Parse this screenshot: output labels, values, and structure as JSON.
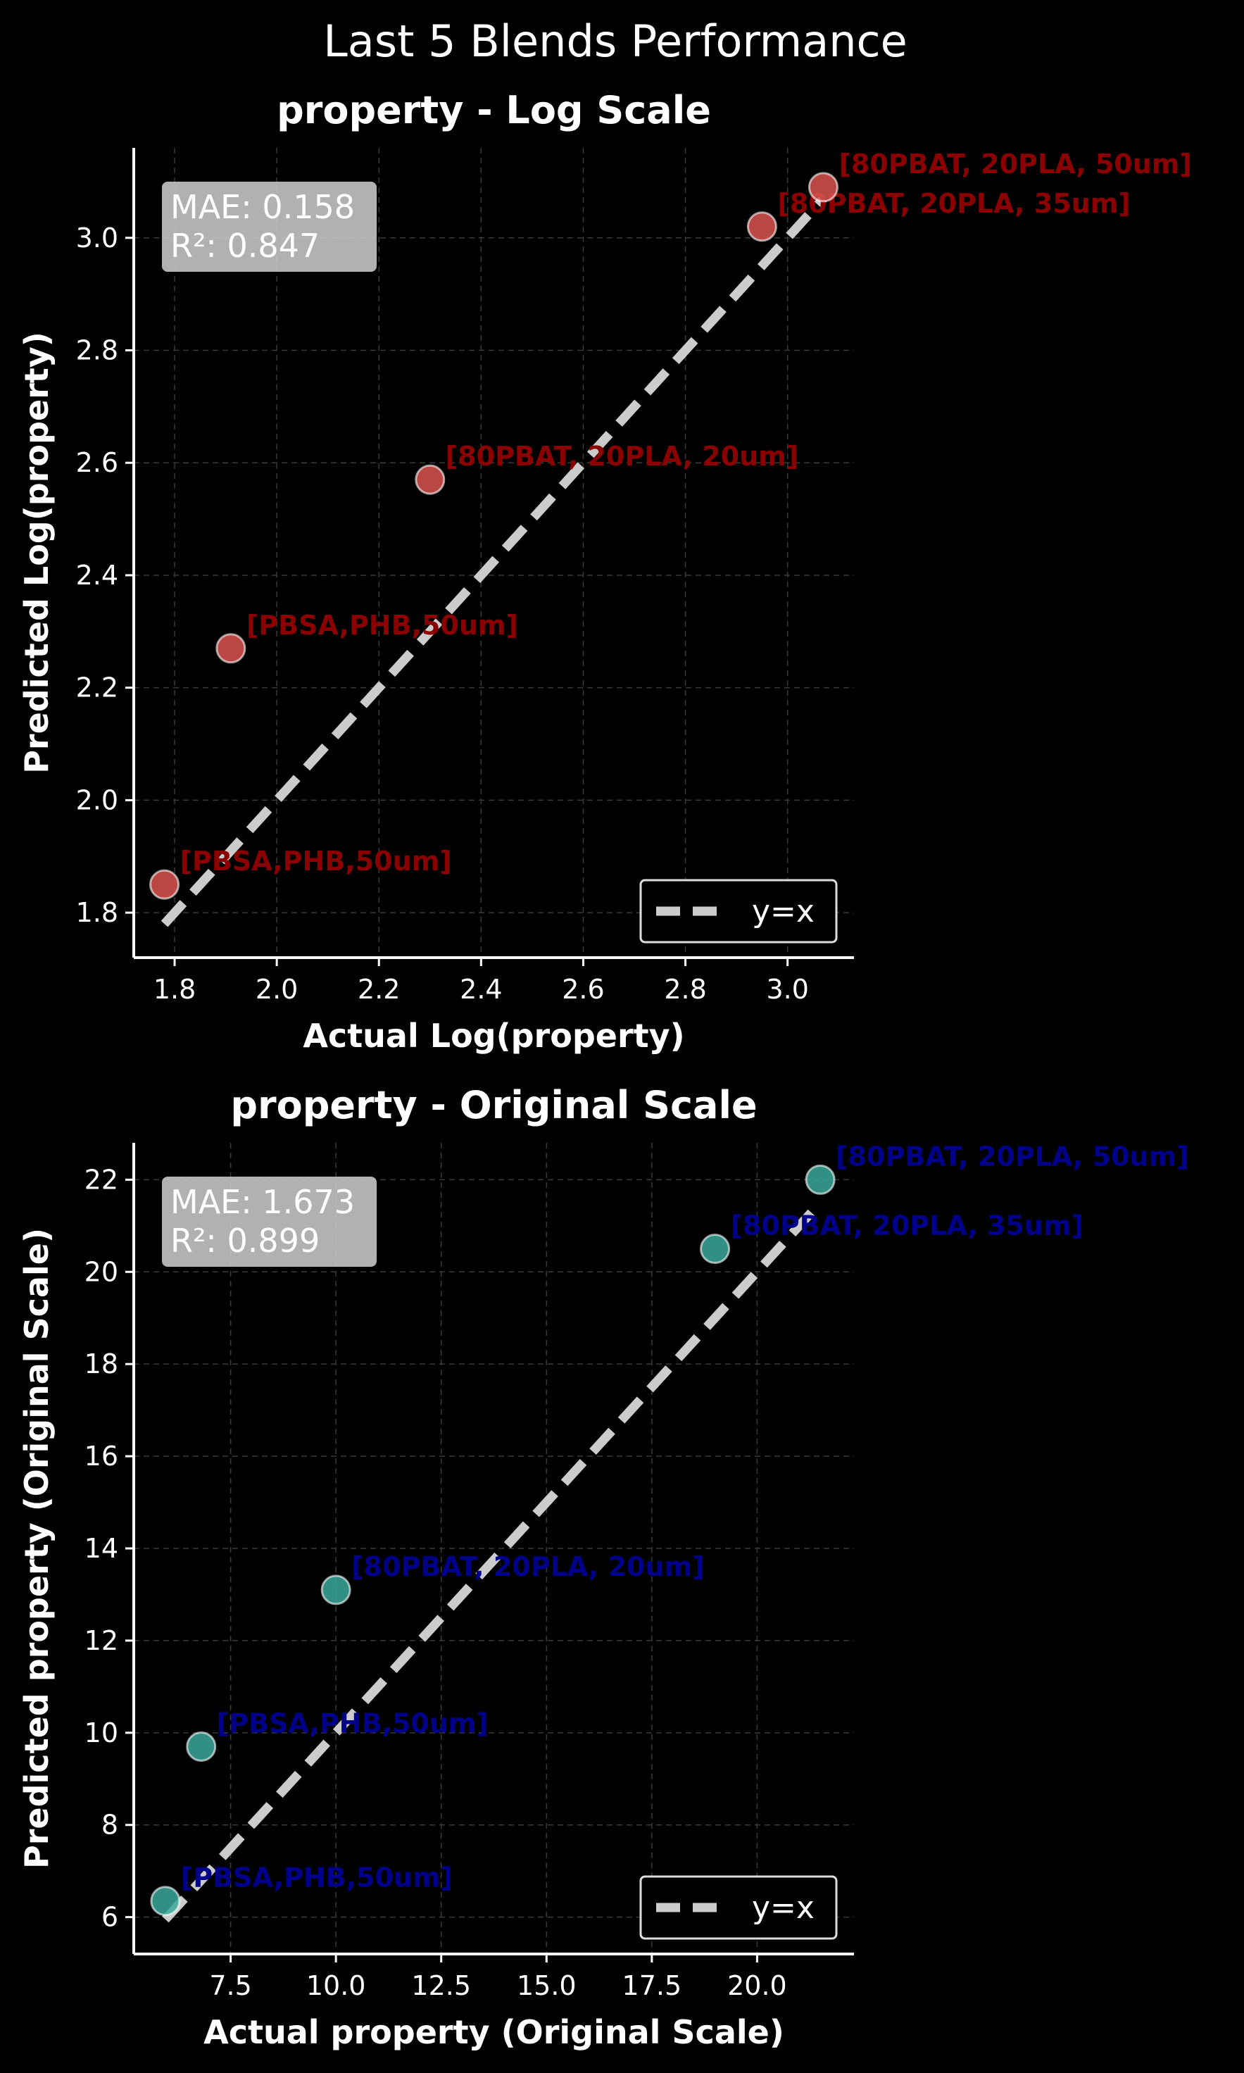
{
  "figure": {
    "title": "Last 5 Blends Performance"
  },
  "chart_data": [
    {
      "type": "scatter",
      "title": "property - Log Scale",
      "xlabel": "Actual Log(property)",
      "ylabel": "Predicted Log(property)",
      "xlim": [
        1.72,
        3.13
      ],
      "ylim": [
        1.72,
        3.16
      ],
      "xticks": [
        1.8,
        2.0,
        2.2,
        2.4,
        2.6,
        2.8,
        3.0
      ],
      "xtick_labels": [
        "1.8",
        "2.0",
        "2.2",
        "2.4",
        "2.6",
        "2.8",
        "3.0"
      ],
      "yticks": [
        1.8,
        2.0,
        2.2,
        2.4,
        2.6,
        2.8,
        3.0
      ],
      "ytick_labels": [
        "1.8",
        "2.0",
        "2.2",
        "2.4",
        "2.6",
        "2.8",
        "3.0"
      ],
      "grid": true,
      "legend_position": "lower-right",
      "legend": [
        "y=x"
      ],
      "reference_line": {
        "from": [
          1.78,
          1.78
        ],
        "to": [
          3.07,
          3.07
        ]
      },
      "stats": [
        "MAE: 0.158",
        "R²: 0.847"
      ],
      "marker_color": "#d9534f",
      "label_color": "#8b0000",
      "points": [
        {
          "x": 1.78,
          "y": 1.85,
          "label": "[PBSA,PHB,50um]"
        },
        {
          "x": 1.91,
          "y": 2.27,
          "label": "[PBSA,PHB,50um]"
        },
        {
          "x": 2.3,
          "y": 2.57,
          "label": "[80PBAT, 20PLA, 20um]"
        },
        {
          "x": 2.95,
          "y": 3.02,
          "label": "[80PBAT, 20PLA, 35um]"
        },
        {
          "x": 3.07,
          "y": 3.09,
          "label": "[80PBAT, 20PLA, 50um]"
        }
      ]
    },
    {
      "type": "scatter",
      "title": "property - Original Scale",
      "xlabel": "Actual property (Original Scale)",
      "ylabel": "Predicted property (Original Scale)",
      "xlim": [
        5.2,
        22.3
      ],
      "ylim": [
        5.2,
        22.8
      ],
      "xticks": [
        7.5,
        10.0,
        12.5,
        15.0,
        17.5,
        20.0
      ],
      "xtick_labels": [
        "7.5",
        "10.0",
        "12.5",
        "15.0",
        "17.5",
        "20.0"
      ],
      "yticks": [
        6,
        8,
        10,
        12,
        14,
        16,
        18,
        20,
        22
      ],
      "ytick_labels": [
        "6",
        "8",
        "10",
        "12",
        "14",
        "16",
        "18",
        "20",
        "22"
      ],
      "grid": true,
      "legend_position": "lower-right",
      "legend": [
        "y=x"
      ],
      "reference_line": {
        "from": [
          5.95,
          5.95
        ],
        "to": [
          21.5,
          21.5
        ]
      },
      "stats": [
        "MAE: 1.673",
        "R²: 0.899"
      ],
      "marker_color": "#3aa89b",
      "label_color": "#00008b",
      "points": [
        {
          "x": 5.95,
          "y": 6.35,
          "label": "[PBSA,PHB,50um]"
        },
        {
          "x": 6.8,
          "y": 9.7,
          "label": "[PBSA,PHB,50um]"
        },
        {
          "x": 10.0,
          "y": 13.1,
          "label": "[80PBAT, 20PLA, 20um]"
        },
        {
          "x": 19.0,
          "y": 20.5,
          "label": "[80PBAT, 20PLA, 35um]"
        },
        {
          "x": 21.5,
          "y": 22.0,
          "label": "[80PBAT, 20PLA, 50um]"
        }
      ]
    }
  ]
}
